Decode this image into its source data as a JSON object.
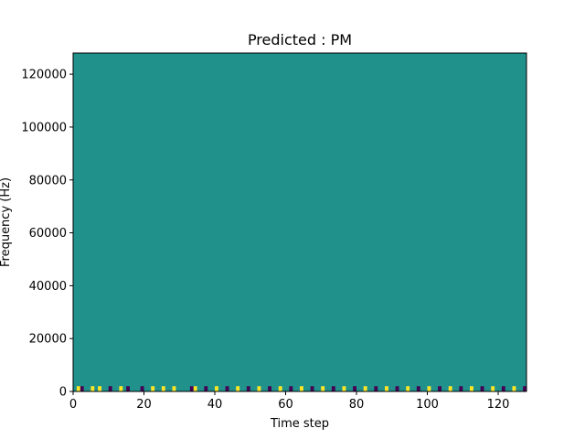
{
  "chart_data": {
    "type": "heatmap",
    "title": "Predicted : PM",
    "xlabel": "Time step",
    "ylabel": "Frequency (Hz)",
    "xlim": [
      0,
      128
    ],
    "ylim": [
      0,
      128000
    ],
    "xticks": [
      0,
      20,
      40,
      60,
      80,
      100,
      120
    ],
    "yticks": [
      0,
      20000,
      40000,
      60000,
      80000,
      100000,
      120000
    ],
    "grid": false,
    "legend": "none",
    "background_value": 0,
    "colormap": {
      "-1": "#440154",
      "0": "#21918c",
      "1": "#fde725"
    },
    "value_meaning": {
      "-1": "dark purple",
      "0": "teal background",
      "1": "yellow"
    },
    "freq_bin_hz": 2000,
    "cells": [
      [
        2,
        0,
        0,
        -1
      ],
      [
        1,
        0,
        0,
        1
      ],
      [
        5,
        0,
        0,
        1
      ],
      [
        7,
        0,
        0,
        1
      ],
      [
        10,
        0,
        0,
        -1
      ],
      [
        13,
        0,
        0,
        1
      ],
      [
        15,
        0,
        0,
        -1
      ],
      [
        19,
        0,
        0,
        -1
      ],
      [
        22,
        0,
        0,
        1
      ],
      [
        25,
        0,
        0,
        1
      ],
      [
        28,
        0,
        0,
        1
      ],
      [
        33,
        0,
        0,
        -1
      ],
      [
        34,
        0,
        0,
        1
      ],
      [
        37,
        0,
        0,
        -1
      ],
      [
        40,
        0,
        0,
        1
      ],
      [
        43,
        0,
        0,
        -1
      ],
      [
        46,
        0,
        0,
        1
      ],
      [
        49,
        0,
        0,
        -1
      ],
      [
        52,
        0,
        0,
        1
      ],
      [
        55,
        0,
        0,
        -1
      ],
      [
        58,
        0,
        0,
        1
      ],
      [
        61,
        0,
        0,
        -1
      ],
      [
        64,
        0,
        0,
        1
      ],
      [
        67,
        0,
        0,
        -1
      ],
      [
        70,
        0,
        0,
        1
      ],
      [
        73,
        0,
        0,
        -1
      ],
      [
        76,
        0,
        0,
        1
      ],
      [
        79,
        0,
        0,
        -1
      ],
      [
        82,
        0,
        0,
        1
      ],
      [
        85,
        0,
        0,
        -1
      ],
      [
        88,
        0,
        0,
        1
      ],
      [
        91,
        0,
        0,
        -1
      ],
      [
        94,
        0,
        0,
        1
      ],
      [
        97,
        0,
        0,
        -1
      ],
      [
        100,
        0,
        0,
        1
      ],
      [
        103,
        0,
        0,
        -1
      ],
      [
        106,
        0,
        0,
        1
      ],
      [
        109,
        0,
        0,
        -1
      ],
      [
        112,
        0,
        0,
        1
      ],
      [
        115,
        0,
        0,
        -1
      ],
      [
        118,
        0,
        0,
        1
      ],
      [
        121,
        0,
        0,
        -1
      ],
      [
        124,
        0,
        0,
        1
      ],
      [
        127,
        0,
        0,
        -1
      ]
    ]
  }
}
